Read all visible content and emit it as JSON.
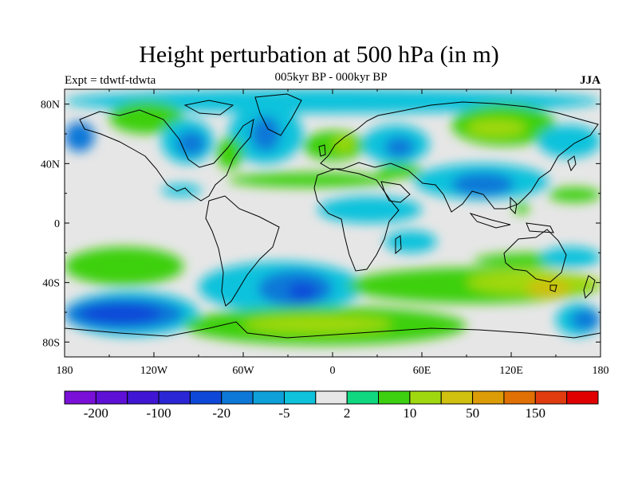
{
  "title": "Height perturbation at 500 hPa (in m)",
  "subtitle_left": "Expt = tdwtf-tdwta",
  "subtitle_center": "005kyr BP - 000kyr BP",
  "subtitle_right": "JJA",
  "lat_ticks": [
    {
      "value": 80,
      "label": "80N"
    },
    {
      "value": 40,
      "label": "40N"
    },
    {
      "value": 0,
      "label": "0"
    },
    {
      "value": -40,
      "label": "40S"
    },
    {
      "value": -80,
      "label": "80S"
    }
  ],
  "lon_ticks": [
    {
      "value": -180,
      "label": "180"
    },
    {
      "value": -120,
      "label": "120W"
    },
    {
      "value": -60,
      "label": "60W"
    },
    {
      "value": 0,
      "label": "0"
    },
    {
      "value": 60,
      "label": "60E"
    },
    {
      "value": 120,
      "label": "120E"
    },
    {
      "value": 180,
      "label": "180"
    }
  ],
  "colorbar": {
    "colors": [
      "#7a10d8",
      "#5e10d6",
      "#4016d4",
      "#2a26d6",
      "#0e48d8",
      "#0e78d8",
      "#0ea0d8",
      "#0ec2dc",
      "#e6e6e6",
      "#10d880",
      "#3cd010",
      "#a0d810",
      "#d0c010",
      "#dc9c08",
      "#e07004",
      "#e03c10",
      "#e00000"
    ],
    "labels": [
      {
        "index": 1,
        "text": "-200"
      },
      {
        "index": 3,
        "text": "-100"
      },
      {
        "index": 5,
        "text": "-20"
      },
      {
        "index": 7,
        "text": "-5"
      },
      {
        "index": 9,
        "text": "2"
      },
      {
        "index": 11,
        "text": "10"
      },
      {
        "index": 13,
        "text": "50"
      },
      {
        "index": 15,
        "text": "150"
      }
    ]
  },
  "field": {
    "background": "#e6e6e6",
    "regions": [
      {
        "color": "#0ec2dc",
        "lon": [
          -180,
          180
        ],
        "lat": [
          74,
          90
        ]
      },
      {
        "color": "#3cd010",
        "lon": [
          -150,
          -100
        ],
        "lat": [
          60,
          82
        ]
      },
      {
        "color": "#0e78d8",
        "lon": [
          -180,
          -160
        ],
        "lat": [
          48,
          68
        ]
      },
      {
        "color": "#0ec2dc",
        "lon": [
          -115,
          -80
        ],
        "lat": [
          40,
          70
        ]
      },
      {
        "color": "#0e78d8",
        "lon": [
          -105,
          -85
        ],
        "lat": [
          45,
          62
        ]
      },
      {
        "color": "#0ec2dc",
        "lon": [
          -70,
          -20
        ],
        "lat": [
          40,
          80
        ]
      },
      {
        "color": "#0e78d8",
        "lon": [
          -55,
          -35
        ],
        "lat": [
          48,
          72
        ]
      },
      {
        "color": "#3cd010",
        "lon": [
          -78,
          -60
        ],
        "lat": [
          36,
          58
        ]
      },
      {
        "color": "#3cd010",
        "lon": [
          -20,
          22
        ],
        "lat": [
          42,
          62
        ]
      },
      {
        "color": "#a0d810",
        "lon": [
          0,
          15
        ],
        "lat": [
          48,
          58
        ]
      },
      {
        "color": "#0ec2dc",
        "lon": [
          20,
          65
        ],
        "lat": [
          40,
          66
        ]
      },
      {
        "color": "#0e78d8",
        "lon": [
          35,
          55
        ],
        "lat": [
          44,
          58
        ]
      },
      {
        "color": "#3cd010",
        "lon": [
          80,
          150
        ],
        "lat": [
          52,
          80
        ]
      },
      {
        "color": "#a0d810",
        "lon": [
          90,
          130
        ],
        "lat": [
          58,
          70
        ]
      },
      {
        "color": "#0ec2dc",
        "lon": [
          138,
          180
        ],
        "lat": [
          44,
          66
        ]
      },
      {
        "color": "#3cd010",
        "lon": [
          -70,
          40
        ],
        "lat": [
          24,
          34
        ]
      },
      {
        "color": "#3cd010",
        "lon": [
          30,
          60
        ],
        "lat": [
          30,
          40
        ]
      },
      {
        "color": "#0ec2dc",
        "lon": [
          55,
          145
        ],
        "lat": [
          16,
          40
        ]
      },
      {
        "color": "#0e78d8",
        "lon": [
          80,
          122
        ],
        "lat": [
          18,
          34
        ]
      },
      {
        "color": "#0ec2dc",
        "lon": [
          -10,
          60
        ],
        "lat": [
          0,
          18
        ]
      },
      {
        "color": "#0ec2dc",
        "lon": [
          -115,
          -88
        ],
        "lat": [
          18,
          26
        ]
      },
      {
        "color": "#3cd010",
        "lon": [
          122,
          132
        ],
        "lat": [
          6,
          14
        ]
      },
      {
        "color": "#3cd010",
        "lon": [
          145,
          180
        ],
        "lat": [
          14,
          24
        ]
      },
      {
        "color": "#0ec2dc",
        "lon": [
          35,
          70
        ],
        "lat": [
          -20,
          -5
        ]
      },
      {
        "color": "#3cd010",
        "lon": [
          -180,
          -100
        ],
        "lat": [
          -42,
          -16
        ]
      },
      {
        "color": "#3cd010",
        "lon": [
          95,
          180
        ],
        "lat": [
          -30,
          -20
        ]
      },
      {
        "color": "#0ec2dc",
        "lon": [
          140,
          180
        ],
        "lat": [
          -30,
          -16
        ]
      },
      {
        "color": "#0ec2dc",
        "lon": [
          -90,
          20
        ],
        "lat": [
          -60,
          -26
        ]
      },
      {
        "color": "#0e78d8",
        "lon": [
          -50,
          0
        ],
        "lat": [
          -56,
          -32
        ]
      },
      {
        "color": "#0e48d8",
        "lon": [
          -30,
          -10
        ],
        "lat": [
          -52,
          -40
        ]
      },
      {
        "color": "#0ec2dc",
        "lon": [
          -180,
          -90
        ],
        "lat": [
          -76,
          -46
        ]
      },
      {
        "color": "#0e78d8",
        "lon": [
          -180,
          -100
        ],
        "lat": [
          -72,
          -50
        ]
      },
      {
        "color": "#0e48d8",
        "lon": [
          -170,
          -115
        ],
        "lat": [
          -68,
          -54
        ]
      },
      {
        "color": "#3cd010",
        "lon": [
          10,
          180
        ],
        "lat": [
          -54,
          -30
        ]
      },
      {
        "color": "#a0d810",
        "lon": [
          90,
          180
        ],
        "lat": [
          -48,
          -32
        ]
      },
      {
        "color": "#d0c010",
        "lon": [
          130,
          160
        ],
        "lat": [
          -50,
          -38
        ]
      },
      {
        "color": "#3cd010",
        "lon": [
          -100,
          90
        ],
        "lat": [
          -82,
          -56
        ]
      },
      {
        "color": "#a0d810",
        "lon": [
          -60,
          40
        ],
        "lat": [
          -74,
          -62
        ]
      },
      {
        "color": "#0ec2dc",
        "lon": [
          150,
          180
        ],
        "lat": [
          -76,
          -54
        ]
      },
      {
        "color": "#0e78d8",
        "lon": [
          160,
          180
        ],
        "lat": [
          -72,
          -58
        ]
      }
    ]
  }
}
